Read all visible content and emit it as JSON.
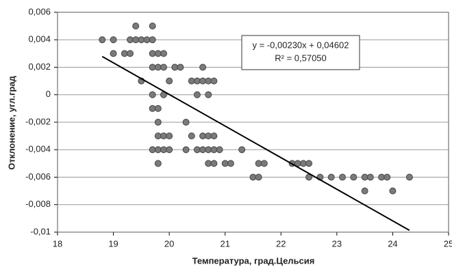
{
  "chart_data": {
    "type": "scatter",
    "x_label": "Температура,  град.Цельсия",
    "y_label": "Отклонение,  угл.град",
    "annotations": [
      "y = -0,00230x + 0,04602",
      "R² = 0,57050"
    ],
    "x": [
      18.8,
      19.0,
      19.3,
      19.4,
      19.5,
      19.6,
      19.7,
      19.4,
      19.7,
      19.0,
      19.2,
      19.3,
      19.7,
      19.8,
      19.9,
      19.7,
      19.8,
      19.9,
      20.1,
      20.2,
      20.6,
      19.5,
      20.0,
      20.4,
      20.5,
      20.6,
      20.7,
      20.8,
      19.7,
      19.9,
      20.5,
      20.7,
      19.7,
      19.8,
      19.8,
      20.3,
      19.8,
      19.9,
      20.0,
      20.4,
      20.6,
      20.7,
      20.8,
      19.7,
      19.8,
      19.9,
      20.0,
      20.3,
      20.5,
      20.6,
      20.7,
      20.8,
      20.9,
      21.3,
      19.8,
      20.7,
      20.8,
      21.0,
      21.1,
      21.6,
      21.7,
      22.2,
      22.3,
      22.4,
      22.5,
      21.5,
      21.6,
      22.5,
      22.7,
      22.9,
      23.1,
      23.3,
      23.5,
      23.6,
      23.8,
      23.9,
      24.3,
      23.5,
      24.0
    ],
    "series": [
      {
        "color": "#7a7a7a",
        "values": [
          0.004,
          0.004,
          0.004,
          0.004,
          0.004,
          0.004,
          0.004,
          0.005,
          0.005,
          0.003,
          0.003,
          0.003,
          0.003,
          0.003,
          0.003,
          0.002,
          0.002,
          0.002,
          0.002,
          0.002,
          0.002,
          0.001,
          0.001,
          0.001,
          0.001,
          0.001,
          0.001,
          0.001,
          0,
          0,
          0,
          0,
          -0.001,
          -0.001,
          -0.002,
          -0.002,
          -0.003,
          -0.003,
          -0.003,
          -0.003,
          -0.003,
          -0.003,
          -0.003,
          -0.004,
          -0.004,
          -0.004,
          -0.004,
          -0.004,
          -0.004,
          -0.004,
          -0.004,
          -0.004,
          -0.004,
          -0.004,
          -0.005,
          -0.005,
          -0.005,
          -0.005,
          -0.005,
          -0.005,
          -0.005,
          -0.005,
          -0.005,
          -0.005,
          -0.005,
          -0.006,
          -0.006,
          -0.006,
          -0.006,
          -0.006,
          -0.006,
          -0.006,
          -0.006,
          -0.006,
          -0.006,
          -0.006,
          -0.006,
          -0.007,
          -0.007
        ]
      }
    ],
    "trendline": {
      "x": [
        18.8,
        24.3
      ],
      "values": [
        0.00278,
        -0.00987
      ],
      "color": "#000000"
    },
    "xlim": [
      18,
      25
    ],
    "xticks": [
      18,
      19,
      20,
      21,
      22,
      23,
      24,
      25
    ],
    "ylim": [
      -0.01,
      0.006
    ],
    "yticks": [
      {
        "value": -0.01,
        "label": "-0,01"
      },
      {
        "value": -0.008,
        "label": "-0,008"
      },
      {
        "value": -0.006,
        "label": "-0,006"
      },
      {
        "value": -0.004,
        "label": "-0,004"
      },
      {
        "value": -0.002,
        "label": "-0,002"
      },
      0,
      {
        "value": 0.002,
        "label": "0,002"
      },
      {
        "value": 0.004,
        "label": "0,004"
      },
      {
        "value": 0.006,
        "label": "0,006"
      }
    ],
    "grid": true
  }
}
